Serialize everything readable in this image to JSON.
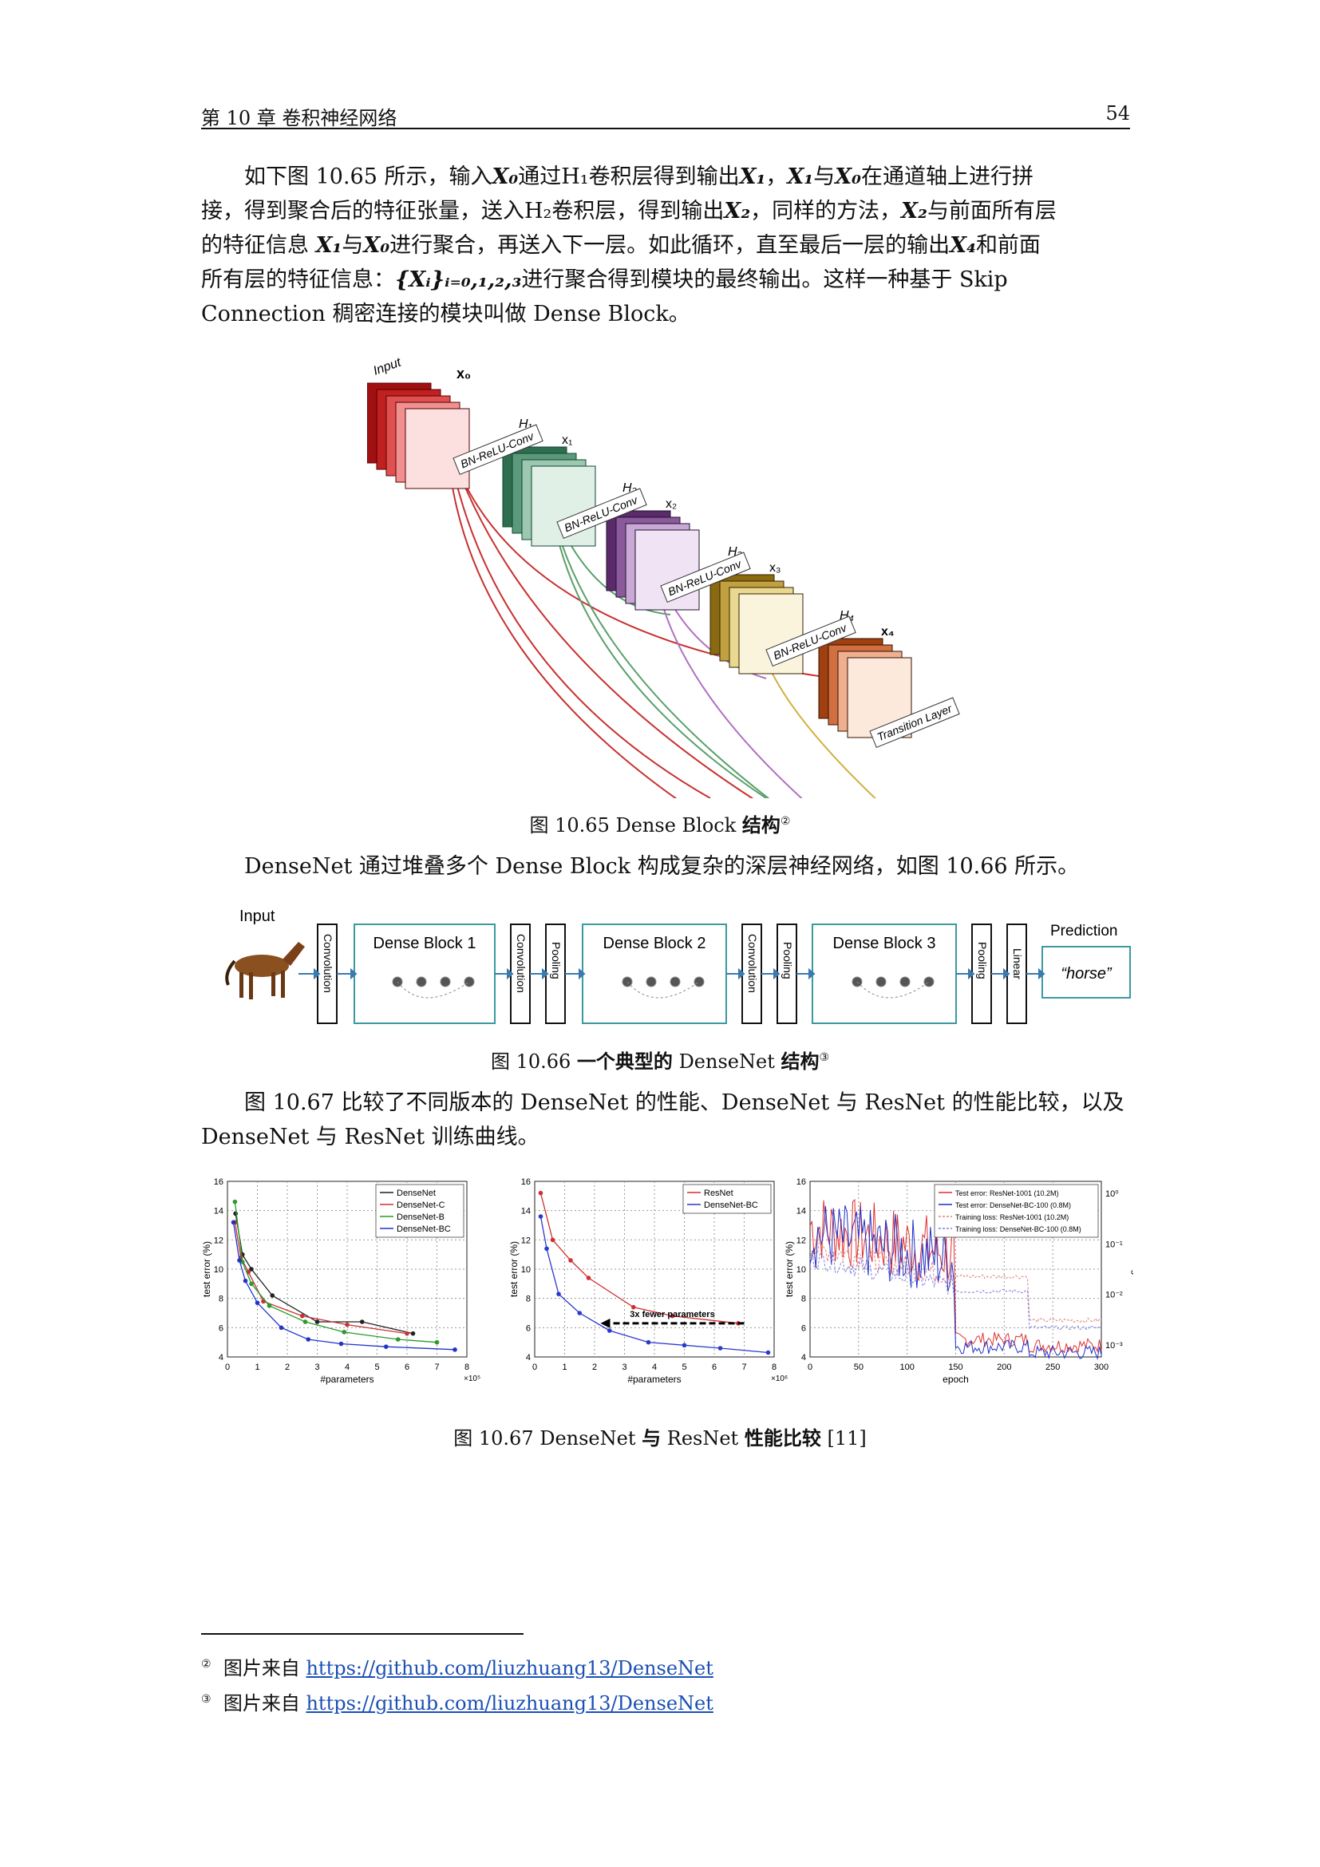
{
  "header": {
    "chapter": "第 10 章  卷积神经网络",
    "page_number": "54"
  },
  "para1": {
    "l1a": "如下图 10.65 所示，输入",
    "X0": "X₀",
    "l1b": "通过H₁卷积层得到输出",
    "X1": "X₁",
    "l1c": "，",
    "X1b": "X₁",
    "l1d": "与",
    "X0b": "X₀",
    "l1e": "在通道轴上进行拼",
    "l2a": "接，得到聚合后的特征张量，送入H₂卷积层，得到输出",
    "X2": "X₂",
    "l2b": "，同样的方法，",
    "X2b": "X₂",
    "l2c": "与前面所有层",
    "l3a": "的特征信息 ",
    "X1c": "X₁",
    "l3b": "与",
    "X0c": "X₀",
    "l3c": "进行聚合，再送入下一层。如此循环，直至最后一层的输出",
    "X4": "X₄",
    "l3d": "和前面",
    "l4a": "所有层的特征信息：",
    "Xi": "{Xᵢ}ᵢ₌₀,₁,₂,₃",
    "l4b": "进行聚合得到模块的最终输出。这样一种基于 Skip",
    "l5": "Connection 稠密连接的模块叫做 Dense Block。"
  },
  "fig65": {
    "input_label": "Input",
    "x_labels": [
      "x₀",
      "x₁",
      "x₂",
      "x₃",
      "x₄"
    ],
    "h_labels": [
      "H₁",
      "H₂",
      "H₃",
      "H₄"
    ],
    "conv_label": "BN-ReLU-Conv",
    "transition_label": "Transition Layer",
    "caption_a": "图 10.65 Dense Block ",
    "caption_b": "结构",
    "caption_note": "②"
  },
  "para2": "DenseNet 通过堆叠多个 Dense Block 构成复杂的深层神经网络，如图 10.66 所示。",
  "fig66": {
    "input_label": "Input",
    "convolution": "Convolution",
    "pooling": "Pooling",
    "linear": "Linear",
    "blocks": [
      "Dense Block 1",
      "Dense Block 2",
      "Dense Block 3"
    ],
    "prediction_label": "Prediction",
    "prediction_value": "“horse”",
    "caption_a": "图 10.66 ",
    "caption_b": "一个典型的",
    "caption_c": " DenseNet ",
    "caption_d": "结构",
    "caption_note": "③"
  },
  "para3": {
    "l1": "图 10.67 比较了不同版本的 DenseNet 的性能、DenseNet 与 ResNet 的性能比较，以及",
    "l2": "DenseNet 与 ResNet 训练曲线。"
  },
  "chart_data": [
    {
      "type": "line",
      "xlabel": "#parameters",
      "ylabel": "test error (%)",
      "x_multiplier": "×10⁵",
      "xlim": [
        0,
        8
      ],
      "ylim": [
        4,
        16
      ],
      "xticks": [
        "0",
        "1",
        "2",
        "3",
        "4",
        "5",
        "6",
        "7",
        "8"
      ],
      "yticks": [
        "4",
        "6",
        "8",
        "10",
        "12",
        "14",
        "16"
      ],
      "grid": true,
      "legend_position": "top-right",
      "series": [
        {
          "name": "DenseNet",
          "color": "#222222",
          "x": [
            0.27,
            0.5,
            0.8,
            1.5,
            3.0,
            4.5,
            6.2
          ],
          "y": [
            13.8,
            11.0,
            10.0,
            8.2,
            6.4,
            6.4,
            5.6
          ]
        },
        {
          "name": "DenseNet-C",
          "color": "#c83232",
          "x": [
            0.25,
            0.45,
            0.7,
            1.2,
            2.5,
            4.0,
            6.0
          ],
          "y": [
            13.2,
            10.8,
            9.8,
            7.8,
            6.8,
            6.2,
            5.6
          ]
        },
        {
          "name": "DenseNet-B",
          "color": "#2a9a2a",
          "x": [
            0.25,
            0.5,
            0.8,
            1.4,
            2.6,
            3.9,
            5.7,
            7.0
          ],
          "y": [
            14.6,
            10.5,
            9.0,
            7.5,
            6.4,
            5.7,
            5.2,
            5.0
          ]
        },
        {
          "name": "DenseNet-BC",
          "color": "#2233cc",
          "x": [
            0.2,
            0.4,
            0.6,
            1.0,
            1.8,
            2.7,
            3.8,
            5.3,
            7.6
          ],
          "y": [
            13.2,
            10.6,
            9.2,
            7.7,
            6.0,
            5.2,
            4.9,
            4.7,
            4.5
          ]
        }
      ]
    },
    {
      "type": "line",
      "xlabel": "#parameters",
      "ylabel": "test error (%)",
      "x_multiplier": "×10⁶",
      "xlim": [
        0,
        8
      ],
      "ylim": [
        4,
        16
      ],
      "xticks": [
        "0",
        "1",
        "2",
        "3",
        "4",
        "5",
        "6",
        "7",
        "8"
      ],
      "yticks": [
        "4",
        "6",
        "8",
        "10",
        "12",
        "14",
        "16"
      ],
      "grid": true,
      "legend_position": "top-right",
      "annotation": "3x fewer parameters",
      "series": [
        {
          "name": "ResNet",
          "color": "#d03030",
          "x": [
            0.2,
            0.6,
            1.2,
            1.8,
            3.3,
            4.6,
            6.8
          ],
          "y": [
            15.2,
            12.0,
            10.6,
            9.4,
            7.4,
            6.8,
            6.3
          ]
        },
        {
          "name": "DenseNet-BC",
          "color": "#2a3acc",
          "x": [
            0.2,
            0.4,
            0.8,
            1.5,
            2.5,
            3.8,
            5.0,
            6.2,
            7.8
          ],
          "y": [
            13.6,
            11.4,
            8.3,
            7.0,
            5.8,
            5.0,
            4.8,
            4.6,
            4.3
          ]
        }
      ]
    },
    {
      "type": "line",
      "xlabel": "epoch",
      "ylabel": "test error (%)",
      "y2label": "training loss",
      "xlim": [
        0,
        300
      ],
      "ylim": [
        4,
        16
      ],
      "xticks": [
        "0",
        "50",
        "100",
        "150",
        "200",
        "250",
        "300"
      ],
      "yticks": [
        "4",
        "6",
        "8",
        "10",
        "12",
        "14",
        "16"
      ],
      "y2ticks": [
        "10⁰",
        "10⁻¹",
        "10⁻²",
        "10⁻³"
      ],
      "grid": true,
      "legend_position": "top-right",
      "series": [
        {
          "name": "Test error: ResNet-1001 (10.2M)",
          "color": "#e03030",
          "style": "solid"
        },
        {
          "name": "Test error: DenseNet-BC-100 (0.8M)",
          "color": "#2030c8",
          "style": "solid"
        },
        {
          "name": "Training loss: ResNet-1001 (10.2M)",
          "color": "#e08080",
          "style": "dashed"
        },
        {
          "name": "Training loss: DenseNet-BC-100 (0.8M)",
          "color": "#8080e0",
          "style": "dashed"
        }
      ]
    }
  ],
  "fig67": {
    "caption_a": "图 10.67 DenseNet ",
    "caption_b": "与",
    "caption_c": " ResNet ",
    "caption_d": "性能比较",
    "caption_e": " [11]"
  },
  "footnotes": [
    {
      "mark": "②",
      "text": "图片来自 ",
      "link": "https://github.com/liuzhuang13/DenseNet"
    },
    {
      "mark": "③",
      "text": "图片来自 ",
      "link": "https://github.com/liuzhuang13/DenseNet"
    }
  ]
}
